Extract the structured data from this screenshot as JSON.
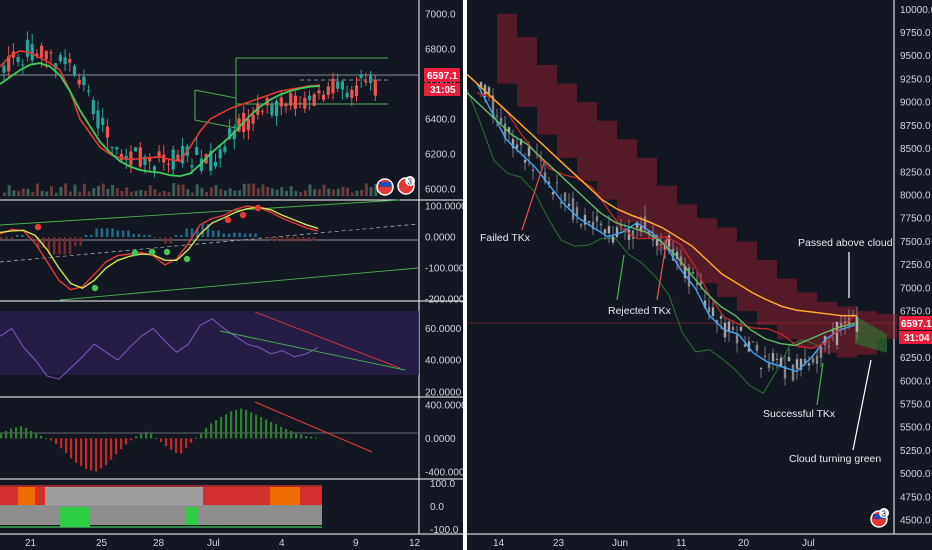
{
  "colors": {
    "bg": "#131722",
    "up": "#26a69a",
    "down": "#ef5350",
    "price_tag": "#e91e3d",
    "grid": "#2a2e39"
  },
  "left": {
    "price": {
      "ticks": [
        "7000.0",
        "6800.0",
        "6600.0",
        "6400.0",
        "6200.0",
        "6000.0"
      ],
      "tick_values": [
        7000,
        6800,
        6600,
        6400,
        6200,
        6000
      ],
      "ylim": [
        5950,
        7080
      ],
      "last_price": "6597.1",
      "countdown": "31:05",
      "badge_count": "3"
    },
    "macd": {
      "ticks": [
        "100.0000",
        "0.0000",
        "-100.0000",
        "-200.0000"
      ],
      "tick_values": [
        100,
        0,
        -100,
        -200
      ],
      "ylim": [
        -200,
        110
      ]
    },
    "rsi": {
      "ticks": [
        "60.0000",
        "40.0000",
        "20.0000"
      ],
      "tick_values": [
        60,
        40,
        20
      ],
      "ylim": [
        18,
        76
      ]
    },
    "osc": {
      "ticks": [
        "400.0000",
        "0.0000",
        "-400.0000"
      ],
      "tick_values": [
        400,
        0,
        -400
      ],
      "ylim": [
        -460,
        470
      ]
    },
    "bars": {
      "ticks": [
        "100.0",
        "0.0",
        "-100.0"
      ],
      "tick_values": [
        100,
        0,
        -100
      ],
      "ylim": [
        -110,
        110
      ]
    },
    "xaxis": [
      "21",
      "25",
      "28",
      "Jul",
      "4",
      "9",
      "12"
    ]
  },
  "chart_data": [
    {
      "type": "line",
      "panel": "left-price",
      "series": [
        {
          "values": [
            6700,
            6760,
            6790,
            6780,
            6750,
            6720,
            6680,
            6560,
            6400,
            6320,
            6240,
            6200,
            6180,
            6170,
            6175,
            6180,
            6185,
            6170,
            6160,
            6240,
            6330,
            6400,
            6430,
            6460,
            6480,
            6500,
            6520,
            6540,
            6560,
            6570,
            6580,
            6590,
            6595
          ]
        },
        {
          "values": [
            6600,
            6640,
            6680,
            6710,
            6720,
            6700,
            6650,
            6560,
            6450,
            6360,
            6270,
            6210,
            6160,
            6130,
            6110,
            6100,
            6095,
            6080,
            6075,
            6090,
            6140,
            6200,
            6250,
            6300,
            6360,
            6420,
            6470,
            6510,
            6540,
            6560,
            6575,
            6585,
            6590
          ]
        }
      ],
      "last_price": 6597.1
    },
    {
      "type": "line",
      "panel": "left-macd",
      "series": [
        {
          "values": [
            10,
            25,
            20,
            -20,
            -80,
            -140,
            -170,
            -160,
            -120,
            -80,
            -60,
            -55,
            -50,
            -60,
            -90,
            -70,
            -20,
            40,
            60,
            70,
            90,
            100,
            95,
            80,
            60,
            45,
            30,
            20
          ]
        },
        {
          "values": [
            15,
            20,
            22,
            5,
            -40,
            -100,
            -150,
            -165,
            -140,
            -100,
            -75,
            -62,
            -55,
            -57,
            -75,
            -75,
            -40,
            10,
            45,
            62,
            80,
            92,
            96,
            88,
            70,
            55,
            40,
            28
          ]
        }
      ]
    },
    {
      "type": "line",
      "panel": "left-rsi",
      "series": [
        {
          "values": [
            55,
            60,
            48,
            40,
            30,
            28,
            35,
            42,
            50,
            45,
            40,
            48,
            55,
            60,
            52,
            45,
            50,
            62,
            66,
            60,
            55,
            50,
            48,
            44,
            46,
            42,
            44,
            48
          ]
        }
      ]
    },
    {
      "type": "bar",
      "panel": "left-osc",
      "values": [
        60,
        120,
        150,
        80,
        20,
        -40,
        -150,
        -280,
        -360,
        -400,
        -320,
        -180,
        -60,
        40,
        90,
        -20,
        -120,
        -200,
        -60,
        60,
        180,
        260,
        330,
        360,
        300,
        240,
        180,
        120,
        70,
        30,
        10
      ]
    },
    {
      "type": "line",
      "panel": "right-price",
      "series": [
        {
          "values": [
            9200,
            8900,
            8600,
            8450,
            8300,
            8100,
            7900,
            7750,
            7650,
            7550,
            7600,
            7700,
            7600,
            7450,
            7200,
            7000,
            6700,
            6550,
            6500,
            6300,
            6200,
            6150,
            6100,
            6250,
            6450,
            6550,
            6600
          ]
        },
        {
          "values": [
            9100,
            8950,
            8800,
            8650,
            8550,
            8400,
            8250,
            8100,
            7950,
            7800,
            7700,
            7650,
            7600,
            7500,
            7350,
            7150,
            6950,
            6800,
            6700,
            6550,
            6450,
            6400,
            6380,
            6450,
            6520,
            6580,
            6620
          ]
        },
        {
          "values": [
            9300,
            9150,
            9000,
            8850,
            8700,
            8550,
            8400,
            8250,
            8100,
            7950,
            7850,
            7780,
            7720,
            7650,
            7550,
            7450,
            7300,
            7150,
            7050,
            6950,
            6870,
            6800,
            6760,
            6740,
            6720,
            6700,
            6700
          ]
        }
      ],
      "last_price": 6597.1
    }
  ],
  "right": {
    "ticks": [
      "10000.0",
      "9750.0",
      "9500.0",
      "9250.0",
      "9000.0",
      "8750.0",
      "8500.0",
      "8250.0",
      "8000.0",
      "7750.0",
      "7500.0",
      "7250.0",
      "7000.0",
      "6750.0",
      "6500.0",
      "6250.0",
      "6000.0",
      "5750.0",
      "5500.0",
      "5250.0",
      "5000.0",
      "4750.0",
      "4500.0"
    ],
    "tick_values": [
      10000,
      9750,
      9500,
      9250,
      9000,
      8750,
      8500,
      8250,
      8000,
      7750,
      7500,
      7250,
      7000,
      6750,
      6500,
      6250,
      6000,
      5750,
      5500,
      5250,
      5000,
      4750,
      4500
    ],
    "ylim": [
      4350,
      10100
    ],
    "last_price": "6597.1",
    "countdown": "31:04",
    "xaxis": [
      "14",
      "23",
      "Jun",
      "11",
      "20",
      "Jul"
    ],
    "badge_count": "3",
    "annotations": {
      "failed": "Failed TKx",
      "rejected": "Rejected TKx",
      "passed": "Passed above cloud",
      "successful": "Successful TKx",
      "cloud": "Cloud turning green"
    }
  }
}
